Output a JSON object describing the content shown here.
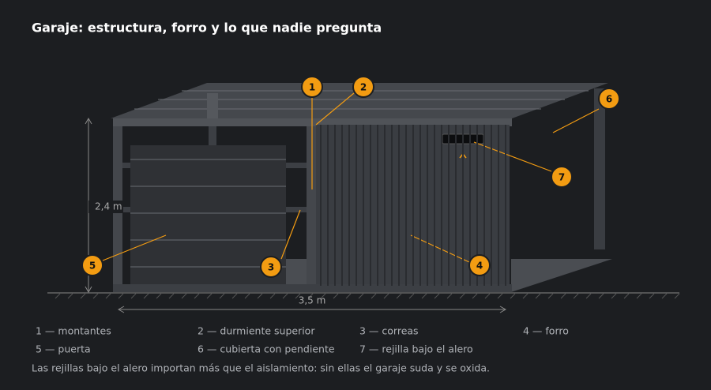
{
  "title": "Garaje: estructura, forro y lo que nadie pregunta",
  "dimensions": {
    "height": "2,4 m",
    "width": "3,5 m"
  },
  "callouts": [
    "1",
    "2",
    "3",
    "4",
    "5",
    "6",
    "7"
  ],
  "legend": [
    "1 — montantes",
    "2 — durmiente superior",
    "3 — correas",
    "4 — forro",
    "5 — puerta",
    "6 — cubierta con pendiente",
    "7 — rejilla bajo el alero"
  ],
  "note": "Las rejillas bajo el alero importan más que el aislamiento: sin ellas el garaje suda y se oxida."
}
